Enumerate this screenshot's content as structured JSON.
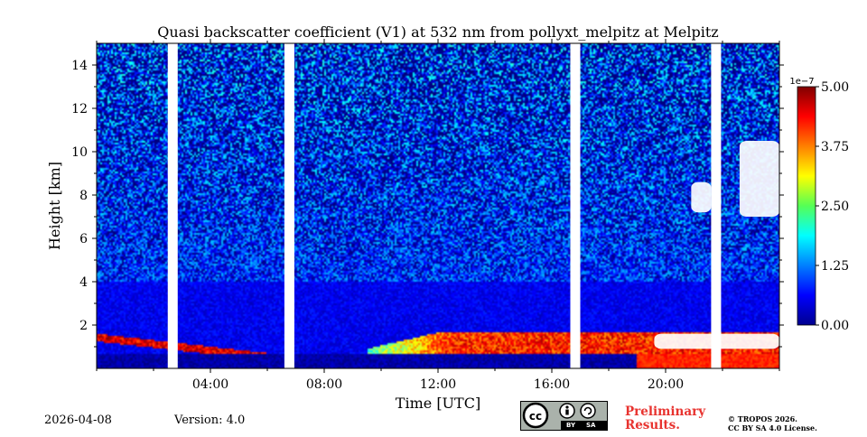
{
  "chart_data": {
    "type": "heatmap",
    "title": "Quasi backscatter coefficient (V1) at 532 nm from pollyxt_melpitz at Melpitz",
    "xlabel": "Time [UTC]",
    "ylabel": "Height [km]",
    "x_unit": "hours UTC",
    "xlim": [
      0,
      24
    ],
    "ylim": [
      0,
      15
    ],
    "xticks": [
      4,
      8,
      12,
      16,
      20
    ],
    "xtick_labels": [
      "04:00",
      "08:00",
      "12:00",
      "16:00",
      "20:00"
    ],
    "x_minor_ticks": [
      0,
      2,
      6,
      10,
      14,
      18,
      22,
      24
    ],
    "yticks": [
      2,
      4,
      6,
      8,
      10,
      12,
      14
    ],
    "ytick_labels": [
      "2",
      "4",
      "6",
      "8",
      "10",
      "12",
      "14"
    ],
    "colorbar": {
      "exponent_label": "1e−7",
      "min": 0.0,
      "max": 5.0,
      "ticks": [
        0.0,
        1.25,
        2.5,
        3.75,
        5.0
      ],
      "tick_labels": [
        "0.00",
        "1.25",
        "2.50",
        "3.75",
        "5.00"
      ],
      "colormap": "jet"
    },
    "data_gaps_hours": [
      [
        2.5,
        2.85
      ],
      [
        6.6,
        6.95
      ],
      [
        16.65,
        17.0
      ],
      [
        21.6,
        21.95
      ]
    ],
    "cloud_mask_regions": [
      {
        "label": "high cloud",
        "t_start": 20.9,
        "t_end": 21.6,
        "h_min": 7.2,
        "h_max": 8.6
      },
      {
        "label": "high cloud",
        "t_start": 22.6,
        "t_end": 24.0,
        "h_min": 7.0,
        "h_max": 10.5
      },
      {
        "label": "low cloud",
        "t_start": 19.6,
        "t_end": 24.0,
        "h_min": 0.9,
        "h_max": 1.6
      }
    ],
    "features": [
      {
        "label": "boundary layer aerosol",
        "t_start": 0.0,
        "t_end": 6.0,
        "h_top": 1.6,
        "level": 4.5
      },
      {
        "label": "boundary layer aerosol",
        "t_start": 9.5,
        "t_end": 24.0,
        "h_top": 1.8,
        "level": 4.0
      },
      {
        "label": "residual layer",
        "t_start": 0.0,
        "t_end": 24.0,
        "h_top": 4.0,
        "level": 1.0
      }
    ]
  },
  "footer": {
    "date": "2026-04-08",
    "version": "Version: 4.0",
    "preliminary": [
      "Preliminary",
      "Results."
    ],
    "copyright": [
      "© TROPOS 2026.",
      "CC BY SA 4.0 License."
    ],
    "license_badge": {
      "by": "BY",
      "sa": "SA"
    }
  }
}
